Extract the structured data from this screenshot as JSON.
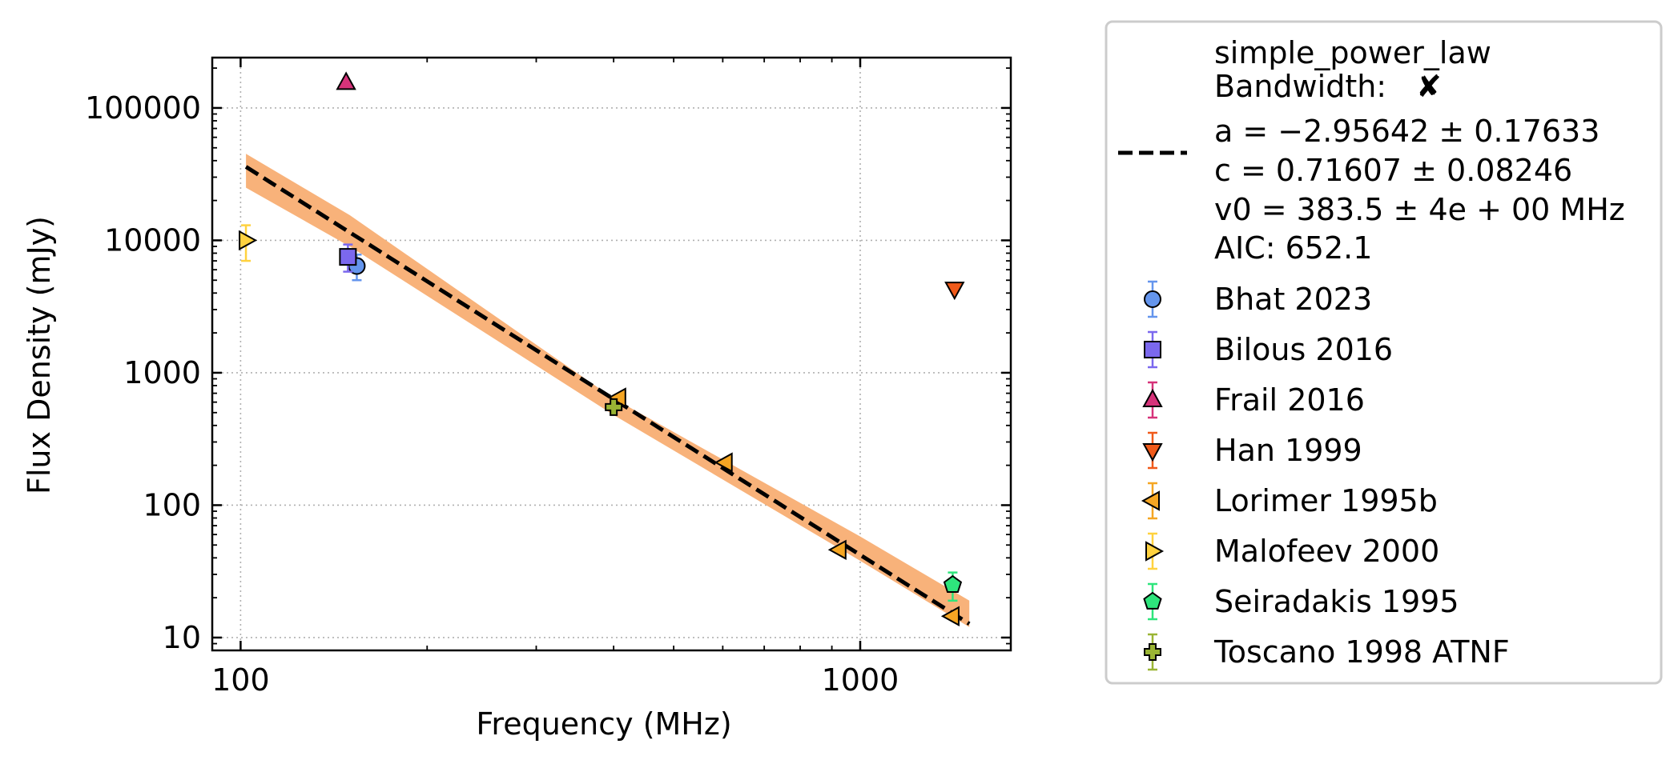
{
  "chart_data": {
    "type": "scatter",
    "xlabel": "Frequency (MHz)",
    "ylabel": "Flux Density (mJy)",
    "xscale": "log",
    "yscale": "log",
    "xlim": [
      90,
      1750
    ],
    "ylim": [
      8,
      240000
    ],
    "xticks": [
      {
        "value": 100,
        "label": "100"
      },
      {
        "value": 1000,
        "label": "1000"
      }
    ],
    "yticks": [
      {
        "value": 10,
        "label": "10"
      },
      {
        "value": 100,
        "label": "100"
      },
      {
        "value": 1000,
        "label": "1000"
      },
      {
        "value": 10000,
        "label": "10000"
      },
      {
        "value": 100000,
        "label": "100000"
      }
    ],
    "grid": true,
    "legend_position": "outside right",
    "fit": {
      "label": "simple_power_law",
      "bandwidth_label": "Bandwidth:",
      "bandwidth_mark": "✘",
      "params": [
        "a = −2.95642 ± 0.17633",
        "c = 0.71607 ± 0.08246",
        "v0 = 383.5 ± 4e + 00 MHz"
      ],
      "aic": "AIC: 652.1",
      "a": -2.95642,
      "c": 0.71607,
      "v0": 383.5,
      "x_range": [
        102,
        1500
      ],
      "band_low": [
        [
          102,
          25000
        ],
        [
          150,
          9000
        ],
        [
          400,
          480
        ],
        [
          1000,
          38
        ],
        [
          1500,
          12
        ]
      ],
      "band_high": [
        [
          102,
          45000
        ],
        [
          150,
          15500
        ],
        [
          400,
          640
        ],
        [
          1000,
          58
        ],
        [
          1500,
          19
        ]
      ],
      "line_color": "#000000",
      "band_color": "#f8b27a"
    },
    "series": [
      {
        "name": "Bhat 2023",
        "marker": "circle",
        "color": "#6495ed",
        "points": [
          {
            "x": 154,
            "y": 6400,
            "err": [
              5000,
              7800
            ]
          }
        ]
      },
      {
        "name": "Bilous 2016",
        "marker": "square",
        "color": "#7b68ee",
        "points": [
          {
            "x": 149,
            "y": 7500,
            "err": [
              5800,
              9300
            ]
          }
        ]
      },
      {
        "name": "Frail 2016",
        "marker": "triangle-up",
        "color": "#d6337a",
        "points": [
          {
            "x": 148,
            "y": 155000,
            "err": null
          }
        ]
      },
      {
        "name": "Han 1999",
        "marker": "triangle-down",
        "color": "#f05a1a",
        "points": [
          {
            "x": 1420,
            "y": 4300,
            "err": null
          }
        ]
      },
      {
        "name": "Lorimer 1995b",
        "marker": "triangle-left",
        "color": "#f5a623",
        "points": [
          {
            "x": 408,
            "y": 650,
            "err": null
          },
          {
            "x": 606,
            "y": 210,
            "err": null
          },
          {
            "x": 925,
            "y": 46,
            "err": null
          },
          {
            "x": 1408,
            "y": 14.5,
            "err": null
          }
        ]
      },
      {
        "name": "Malofeev 2000",
        "marker": "triangle-right",
        "color": "#ffd23f",
        "points": [
          {
            "x": 102,
            "y": 10000,
            "err": [
              7000,
              13000
            ]
          }
        ]
      },
      {
        "name": "Seiradakis 1995",
        "marker": "pentagon",
        "color": "#2ee57c",
        "points": [
          {
            "x": 1410,
            "y": 25,
            "err": [
              19,
              31
            ]
          }
        ]
      },
      {
        "name": "Toscano 1998 ATNF",
        "marker": "plus",
        "color": "#9ab534",
        "points": [
          {
            "x": 400,
            "y": 550,
            "err": null
          }
        ]
      }
    ]
  }
}
